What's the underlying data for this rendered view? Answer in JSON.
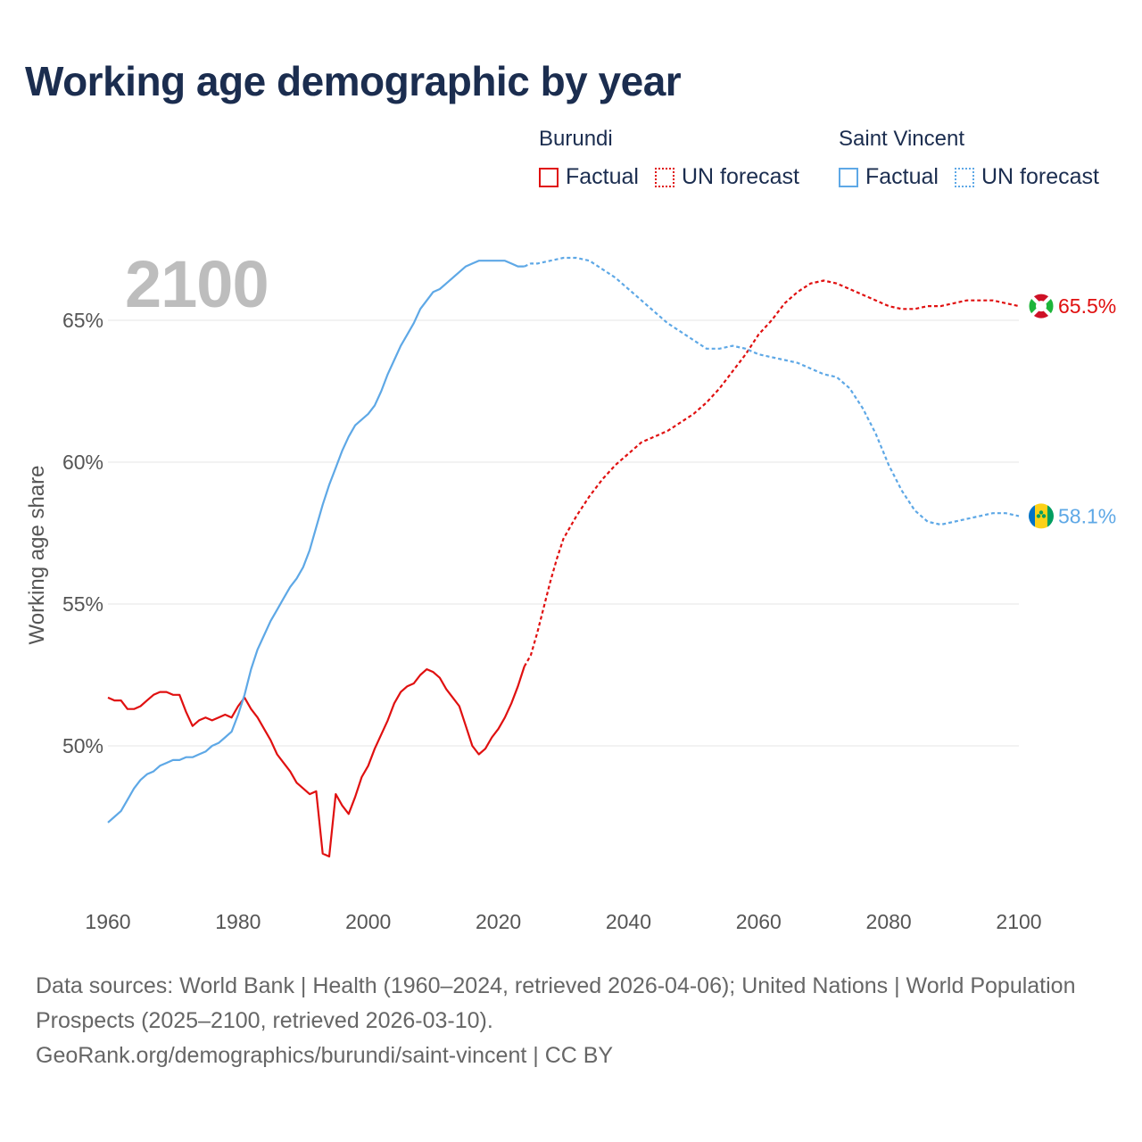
{
  "title": "Working age demographic by year",
  "year_display": "2100",
  "legend": {
    "groups": [
      {
        "name": "Burundi",
        "color": "#e01010",
        "factual": "Factual",
        "forecast": "UN forecast"
      },
      {
        "name": "Saint Vincent",
        "color": "#5ea8e6",
        "factual": "Factual",
        "forecast": "UN forecast"
      }
    ]
  },
  "footer": {
    "line1": "Data sources: World Bank | Health (1960–2024, retrieved 2026-04-06); United Nations | World Population Prospects (2025–2100, retrieved 2026-03-10).",
    "line2": "GeoRank.org/demographics/burundi/saint-vincent | CC BY"
  },
  "chart_data": {
    "type": "line",
    "title": "Working age demographic by year",
    "xlabel": "",
    "ylabel": "Working age share",
    "xlim": [
      1960,
      2100
    ],
    "ylim": [
      46.0,
      68.0
    ],
    "x_ticks": [
      "1960",
      "1980",
      "2000",
      "2020",
      "2040",
      "2060",
      "2080",
      "2100"
    ],
    "y_ticks": [
      "50%",
      "55%",
      "60%",
      "65%"
    ],
    "y_tick_values": [
      50,
      55,
      60,
      65
    ],
    "grid": true,
    "factual_range": [
      1960,
      2024
    ],
    "forecast_range": [
      2024,
      2100
    ],
    "series": [
      {
        "name": "Burundi",
        "color": "#e01010",
        "end_label": "65.5%",
        "flag_colors": [
          "#ce1126",
          "#ffffff",
          "#1eb53a"
        ],
        "points": [
          [
            1960,
            51.7
          ],
          [
            1961,
            51.6
          ],
          [
            1962,
            51.6
          ],
          [
            1963,
            51.3
          ],
          [
            1964,
            51.3
          ],
          [
            1965,
            51.4
          ],
          [
            1966,
            51.6
          ],
          [
            1967,
            51.8
          ],
          [
            1968,
            51.9
          ],
          [
            1969,
            51.9
          ],
          [
            1970,
            51.8
          ],
          [
            1971,
            51.8
          ],
          [
            1972,
            51.2
          ],
          [
            1973,
            50.7
          ],
          [
            1974,
            50.9
          ],
          [
            1975,
            51.0
          ],
          [
            1976,
            50.9
          ],
          [
            1977,
            51.0
          ],
          [
            1978,
            51.1
          ],
          [
            1979,
            51.0
          ],
          [
            1980,
            51.4
          ],
          [
            1981,
            51.7
          ],
          [
            1982,
            51.3
          ],
          [
            1983,
            51.0
          ],
          [
            1984,
            50.6
          ],
          [
            1985,
            50.2
          ],
          [
            1986,
            49.7
          ],
          [
            1987,
            49.4
          ],
          [
            1988,
            49.1
          ],
          [
            1989,
            48.7
          ],
          [
            1990,
            48.5
          ],
          [
            1991,
            48.3
          ],
          [
            1992,
            48.4
          ],
          [
            1993,
            46.2
          ],
          [
            1994,
            46.1
          ],
          [
            1995,
            48.3
          ],
          [
            1996,
            47.9
          ],
          [
            1997,
            47.6
          ],
          [
            1998,
            48.2
          ],
          [
            1999,
            48.9
          ],
          [
            2000,
            49.3
          ],
          [
            2001,
            49.9
          ],
          [
            2002,
            50.4
          ],
          [
            2003,
            50.9
          ],
          [
            2004,
            51.5
          ],
          [
            2005,
            51.9
          ],
          [
            2006,
            52.1
          ],
          [
            2007,
            52.2
          ],
          [
            2008,
            52.5
          ],
          [
            2009,
            52.7
          ],
          [
            2010,
            52.6
          ],
          [
            2011,
            52.4
          ],
          [
            2012,
            52.0
          ],
          [
            2013,
            51.7
          ],
          [
            2014,
            51.4
          ],
          [
            2015,
            50.7
          ],
          [
            2016,
            50.0
          ],
          [
            2017,
            49.7
          ],
          [
            2018,
            49.9
          ],
          [
            2019,
            50.3
          ],
          [
            2020,
            50.6
          ],
          [
            2021,
            51.0
          ],
          [
            2022,
            51.5
          ],
          [
            2023,
            52.1
          ],
          [
            2024,
            52.8
          ],
          [
            2025,
            53.2
          ],
          [
            2026,
            54.0
          ],
          [
            2027,
            54.9
          ],
          [
            2028,
            55.8
          ],
          [
            2029,
            56.6
          ],
          [
            2030,
            57.3
          ],
          [
            2032,
            58.1
          ],
          [
            2034,
            58.8
          ],
          [
            2036,
            59.4
          ],
          [
            2038,
            59.9
          ],
          [
            2040,
            60.3
          ],
          [
            2042,
            60.7
          ],
          [
            2044,
            60.9
          ],
          [
            2046,
            61.1
          ],
          [
            2048,
            61.4
          ],
          [
            2050,
            61.7
          ],
          [
            2052,
            62.1
          ],
          [
            2054,
            62.6
          ],
          [
            2056,
            63.2
          ],
          [
            2058,
            63.8
          ],
          [
            2060,
            64.5
          ],
          [
            2062,
            65.0
          ],
          [
            2064,
            65.6
          ],
          [
            2066,
            66.0
          ],
          [
            2068,
            66.3
          ],
          [
            2070,
            66.4
          ],
          [
            2072,
            66.3
          ],
          [
            2074,
            66.1
          ],
          [
            2076,
            65.9
          ],
          [
            2078,
            65.7
          ],
          [
            2080,
            65.5
          ],
          [
            2082,
            65.4
          ],
          [
            2084,
            65.4
          ],
          [
            2086,
            65.5
          ],
          [
            2088,
            65.5
          ],
          [
            2090,
            65.6
          ],
          [
            2092,
            65.7
          ],
          [
            2094,
            65.7
          ],
          [
            2096,
            65.7
          ],
          [
            2098,
            65.6
          ],
          [
            2100,
            65.5
          ]
        ]
      },
      {
        "name": "Saint Vincent",
        "color": "#5ea8e6",
        "end_label": "58.1%",
        "flag_colors": [
          "#0072c6",
          "#fcd116",
          "#009e60"
        ],
        "points": [
          [
            1960,
            47.3
          ],
          [
            1961,
            47.5
          ],
          [
            1962,
            47.7
          ],
          [
            1963,
            48.1
          ],
          [
            1964,
            48.5
          ],
          [
            1965,
            48.8
          ],
          [
            1966,
            49.0
          ],
          [
            1967,
            49.1
          ],
          [
            1968,
            49.3
          ],
          [
            1969,
            49.4
          ],
          [
            1970,
            49.5
          ],
          [
            1971,
            49.5
          ],
          [
            1972,
            49.6
          ],
          [
            1973,
            49.6
          ],
          [
            1974,
            49.7
          ],
          [
            1975,
            49.8
          ],
          [
            1976,
            50.0
          ],
          [
            1977,
            50.1
          ],
          [
            1978,
            50.3
          ],
          [
            1979,
            50.5
          ],
          [
            1980,
            51.1
          ],
          [
            1981,
            51.8
          ],
          [
            1982,
            52.7
          ],
          [
            1983,
            53.4
          ],
          [
            1984,
            53.9
          ],
          [
            1985,
            54.4
          ],
          [
            1986,
            54.8
          ],
          [
            1987,
            55.2
          ],
          [
            1988,
            55.6
          ],
          [
            1989,
            55.9
          ],
          [
            1990,
            56.3
          ],
          [
            1991,
            56.9
          ],
          [
            1992,
            57.7
          ],
          [
            1993,
            58.5
          ],
          [
            1994,
            59.2
          ],
          [
            1995,
            59.8
          ],
          [
            1996,
            60.4
          ],
          [
            1997,
            60.9
          ],
          [
            1998,
            61.3
          ],
          [
            1999,
            61.5
          ],
          [
            2000,
            61.7
          ],
          [
            2001,
            62.0
          ],
          [
            2002,
            62.5
          ],
          [
            2003,
            63.1
          ],
          [
            2004,
            63.6
          ],
          [
            2005,
            64.1
          ],
          [
            2006,
            64.5
          ],
          [
            2007,
            64.9
          ],
          [
            2008,
            65.4
          ],
          [
            2009,
            65.7
          ],
          [
            2010,
            66.0
          ],
          [
            2011,
            66.1
          ],
          [
            2012,
            66.3
          ],
          [
            2013,
            66.5
          ],
          [
            2014,
            66.7
          ],
          [
            2015,
            66.9
          ],
          [
            2016,
            67.0
          ],
          [
            2017,
            67.1
          ],
          [
            2018,
            67.1
          ],
          [
            2019,
            67.1
          ],
          [
            2020,
            67.1
          ],
          [
            2021,
            67.1
          ],
          [
            2022,
            67.0
          ],
          [
            2023,
            66.9
          ],
          [
            2024,
            66.9
          ],
          [
            2025,
            67.0
          ],
          [
            2026,
            67.0
          ],
          [
            2028,
            67.1
          ],
          [
            2030,
            67.2
          ],
          [
            2032,
            67.2
          ],
          [
            2034,
            67.1
          ],
          [
            2036,
            66.8
          ],
          [
            2038,
            66.5
          ],
          [
            2040,
            66.1
          ],
          [
            2042,
            65.7
          ],
          [
            2044,
            65.3
          ],
          [
            2046,
            64.9
          ],
          [
            2048,
            64.6
          ],
          [
            2050,
            64.3
          ],
          [
            2052,
            64.0
          ],
          [
            2054,
            64.0
          ],
          [
            2056,
            64.1
          ],
          [
            2058,
            64.0
          ],
          [
            2060,
            63.8
          ],
          [
            2062,
            63.7
          ],
          [
            2064,
            63.6
          ],
          [
            2066,
            63.5
          ],
          [
            2068,
            63.3
          ],
          [
            2070,
            63.1
          ],
          [
            2072,
            63.0
          ],
          [
            2074,
            62.6
          ],
          [
            2076,
            61.9
          ],
          [
            2078,
            61.0
          ],
          [
            2080,
            59.9
          ],
          [
            2082,
            59.0
          ],
          [
            2084,
            58.3
          ],
          [
            2086,
            57.9
          ],
          [
            2088,
            57.8
          ],
          [
            2090,
            57.9
          ],
          [
            2092,
            58.0
          ],
          [
            2094,
            58.1
          ],
          [
            2096,
            58.2
          ],
          [
            2098,
            58.2
          ],
          [
            2100,
            58.1
          ]
        ]
      }
    ]
  }
}
